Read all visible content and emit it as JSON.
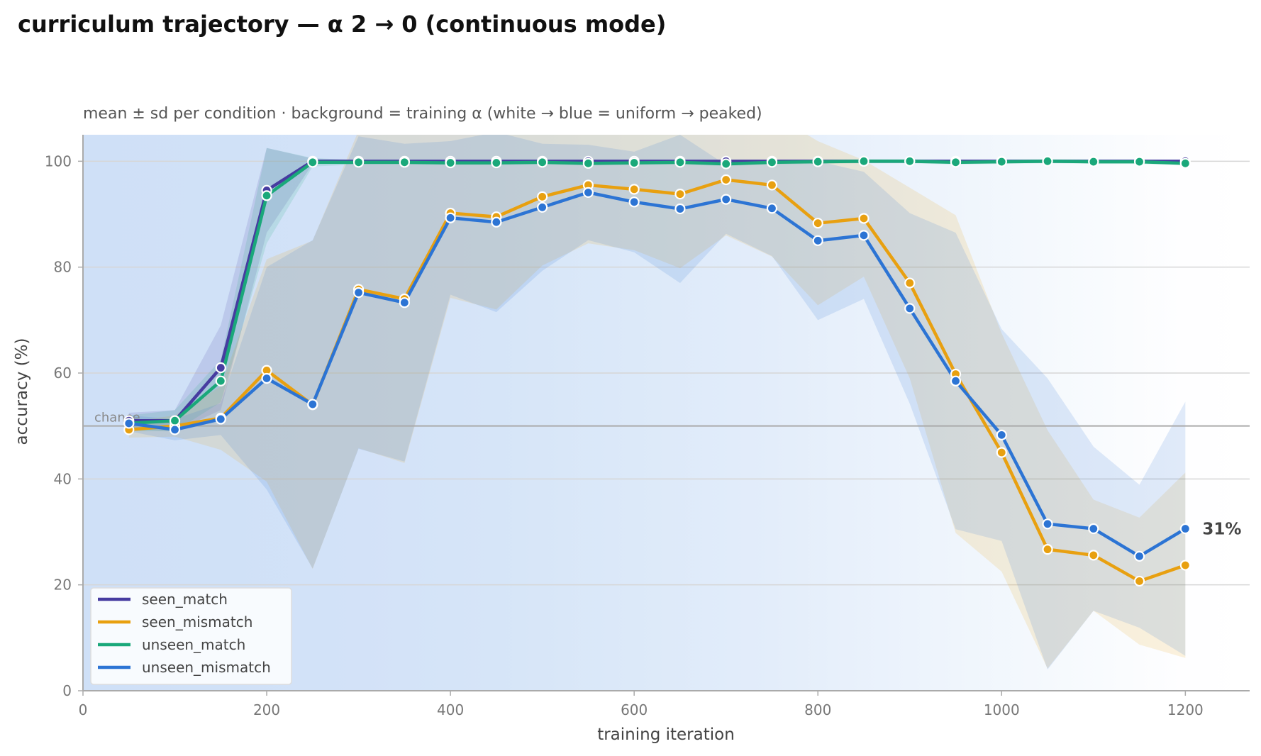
{
  "chart_data": {
    "type": "line",
    "title": "curriculum trajectory — α 2 → 0 (continuous mode)",
    "subtitle": "mean ± sd per condition · background = training α (white → blue = uniform → peaked)",
    "xlabel": "training iteration",
    "ylabel": "accuracy (%)",
    "xlim": [
      0,
      1270
    ],
    "ylim": [
      0,
      105
    ],
    "xticks": [
      0,
      200,
      400,
      600,
      800,
      1000,
      1200
    ],
    "yticks": [
      0,
      20,
      40,
      60,
      80,
      100
    ],
    "grid": "horizontal",
    "legend_position": "lower-left",
    "chance": {
      "value": 50,
      "label": "chance"
    },
    "end_annotation": {
      "series": "unseen_mismatch",
      "text": "31%"
    },
    "background_alpha": {
      "x": [
        0,
        150,
        300,
        450,
        600,
        750,
        900,
        1050,
        1200,
        1270
      ],
      "alpha": [
        2.0,
        1.95,
        1.85,
        1.7,
        1.45,
        1.15,
        0.8,
        0.4,
        0.05,
        0.0
      ],
      "color_peaked": "#cfe0f7",
      "color_uniform": "#ffffff"
    },
    "x": [
      50,
      100,
      150,
      200,
      250,
      300,
      350,
      400,
      450,
      500,
      550,
      600,
      650,
      700,
      750,
      800,
      850,
      900,
      950,
      1000,
      1050,
      1100,
      1150,
      1200
    ],
    "series": [
      {
        "name": "seen_match",
        "color": "#473ca0",
        "mean": [
          51,
          51,
          61,
          94.5,
          100,
          100,
          100,
          100,
          100,
          100,
          100,
          100,
          100,
          100,
          100,
          100,
          100,
          100,
          100,
          100,
          100,
          100,
          100,
          100
        ],
        "sd": [
          1.5,
          2,
          8,
          8,
          0.5,
          0.3,
          0.3,
          0.3,
          0.3,
          0.3,
          0.3,
          0.3,
          0.3,
          0.3,
          0.3,
          0.3,
          0.3,
          0.3,
          0.3,
          0.3,
          0.3,
          0.3,
          0.3,
          0.3
        ]
      },
      {
        "name": "seen_mismatch",
        "color": "#e8a010",
        "mean": [
          49.3,
          50,
          51.5,
          60.5,
          54,
          75.8,
          74,
          90.2,
          89.5,
          93.3,
          95.5,
          94.7,
          93.8,
          96.5,
          95.5,
          88.3,
          89.2,
          77,
          59.8,
          45,
          26.7,
          25.6,
          20.7,
          23.7
        ],
        "sd": [
          1.5,
          2,
          6,
          21,
          31,
          30,
          31,
          16,
          17.5,
          13,
          11,
          11.5,
          14,
          10.5,
          13.5,
          15.5,
          11,
          18,
          30,
          22.5,
          22.5,
          10.5,
          12,
          17.5
        ]
      },
      {
        "name": "unseen_match",
        "color": "#1aa87a",
        "mean": [
          50.5,
          51,
          58.5,
          93.5,
          99.8,
          99.8,
          99.8,
          99.7,
          99.7,
          99.8,
          99.6,
          99.7,
          99.8,
          99.5,
          99.8,
          99.9,
          100,
          100,
          99.8,
          99.9,
          100,
          99.9,
          99.9,
          99.6
        ],
        "sd": [
          1.5,
          2,
          4,
          9,
          0.8,
          0.4,
          0.4,
          0.4,
          0.4,
          0.4,
          0.4,
          0.4,
          0.4,
          0.4,
          0.4,
          0.4,
          0.4,
          0.4,
          0.4,
          0.4,
          0.4,
          0.4,
          0.4,
          0.4
        ]
      },
      {
        "name": "unseen_mismatch",
        "color": "#2c74d4",
        "mean": [
          50.5,
          49.3,
          51.3,
          59,
          54.1,
          75.2,
          73.3,
          89.3,
          88.5,
          91.3,
          94.1,
          92.3,
          91,
          92.8,
          91.1,
          85,
          86,
          72.2,
          58.5,
          48.3,
          31.5,
          30.6,
          25.4,
          30.6
        ],
        "sd": [
          1.5,
          2,
          3,
          21,
          31,
          29.5,
          30,
          14.5,
          17,
          12,
          9,
          9.5,
          14,
          6.5,
          9,
          15,
          12,
          18,
          28,
          20,
          27.5,
          15.5,
          13.5,
          24
        ]
      }
    ]
  }
}
